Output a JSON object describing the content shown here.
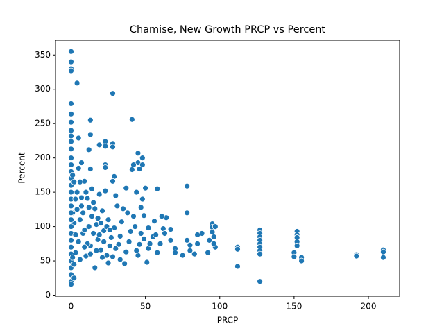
{
  "chart_data": {
    "type": "scatter",
    "title": "Chamise, New Growth PRCP vs Percent",
    "x_label": "PRCP",
    "y_label": "Percent",
    "color": "#1f77b4",
    "xlim": [
      -10.5,
      221
    ],
    "ylim": [
      -1.5,
      371.5
    ],
    "xticks": [
      0,
      50,
      100,
      150,
      200
    ],
    "yticks": [
      0,
      50,
      100,
      150,
      200,
      250,
      300,
      350
    ],
    "x": [
      0,
      0,
      0,
      0,
      4,
      28,
      0,
      0,
      0,
      41,
      13,
      13,
      0,
      0,
      5,
      23,
      19,
      28,
      28,
      23,
      45,
      48,
      45,
      42,
      48,
      12,
      7,
      13,
      23,
      23,
      29,
      28,
      41,
      46,
      78,
      58,
      50,
      37,
      78,
      112,
      112,
      112,
      127,
      127,
      127,
      127,
      127,
      127,
      127,
      127,
      127,
      152,
      152,
      152,
      152,
      152,
      150,
      150,
      155,
      155,
      192,
      192,
      210,
      210,
      210,
      95,
      95,
      95,
      97,
      96,
      97,
      96,
      93,
      92,
      88,
      85,
      85,
      80,
      80,
      83,
      78,
      75,
      70,
      70,
      67,
      67,
      64,
      61,
      62,
      63,
      60,
      58,
      56,
      55,
      52,
      52,
      51,
      49,
      49,
      48,
      47,
      46,
      45,
      44,
      43,
      42,
      40,
      38,
      37,
      35,
      34,
      33,
      32,
      31,
      30,
      29,
      28,
      27,
      26,
      25,
      24,
      23,
      22,
      21,
      20,
      19,
      18,
      17,
      16,
      15,
      14,
      13,
      12,
      11,
      10,
      9,
      8,
      7,
      6,
      5,
      4,
      3,
      2,
      1,
      0,
      0,
      0,
      0,
      0,
      0,
      0,
      0,
      0,
      0,
      0,
      0,
      0,
      0,
      0,
      0,
      0,
      0,
      0,
      0,
      0,
      0,
      1,
      2,
      3,
      4,
      5,
      6,
      7,
      8,
      9,
      10,
      11,
      12,
      13,
      14,
      15,
      16,
      17,
      18,
      19,
      20,
      21,
      22,
      24,
      25,
      26,
      30,
      33,
      36,
      39,
      44,
      47,
      53,
      57,
      2,
      3,
      1,
      6,
      9,
      2
    ],
    "values": [
      355,
      340,
      330,
      327,
      309,
      294,
      279,
      264,
      252,
      256,
      255,
      234,
      240,
      232,
      229,
      224,
      219,
      221,
      216,
      217,
      207,
      200,
      193,
      190,
      190,
      212,
      193,
      184,
      190,
      186,
      173,
      166,
      183,
      184,
      159,
      155,
      156,
      156,
      120,
      70,
      67,
      42,
      20,
      95,
      90,
      85,
      80,
      75,
      70,
      65,
      60,
      93,
      88,
      84,
      78,
      72,
      62,
      56,
      55,
      50,
      59,
      57,
      66,
      63,
      55,
      104,
      99,
      92,
      100,
      85,
      70,
      75,
      80,
      62,
      90,
      88,
      75,
      73,
      65,
      60,
      80,
      58,
      68,
      62,
      96,
      80,
      113,
      115,
      97,
      90,
      75,
      62,
      108,
      85,
      98,
      68,
      48,
      116,
      82,
      140,
      128,
      74,
      58,
      150,
      100,
      115,
      93,
      120,
      63,
      126,
      107,
      86,
      74,
      130,
      145,
      98,
      56,
      84,
      72,
      110,
      58,
      152,
      94,
      123,
      66,
      147,
      81,
      103,
      40,
      135,
      155,
      72,
      100,
      141,
      57,
      166,
      90,
      130,
      110,
      78,
      150,
      62,
      105,
      120,
      200,
      190,
      180,
      170,
      160,
      150,
      140,
      130,
      120,
      110,
      100,
      90,
      80,
      70,
      60,
      50,
      40,
      30,
      20,
      16,
      224,
      213,
      175,
      165,
      140,
      125,
      185,
      165,
      142,
      120,
      95,
      150,
      75,
      128,
      60,
      115,
      90,
      126,
      65,
      112,
      88,
      105,
      55,
      78,
      100,
      47,
      95,
      68,
      52,
      46,
      78,
      65,
      90,
      75,
      88,
      45,
      88,
      55,
      52,
      70,
      25
    ]
  }
}
